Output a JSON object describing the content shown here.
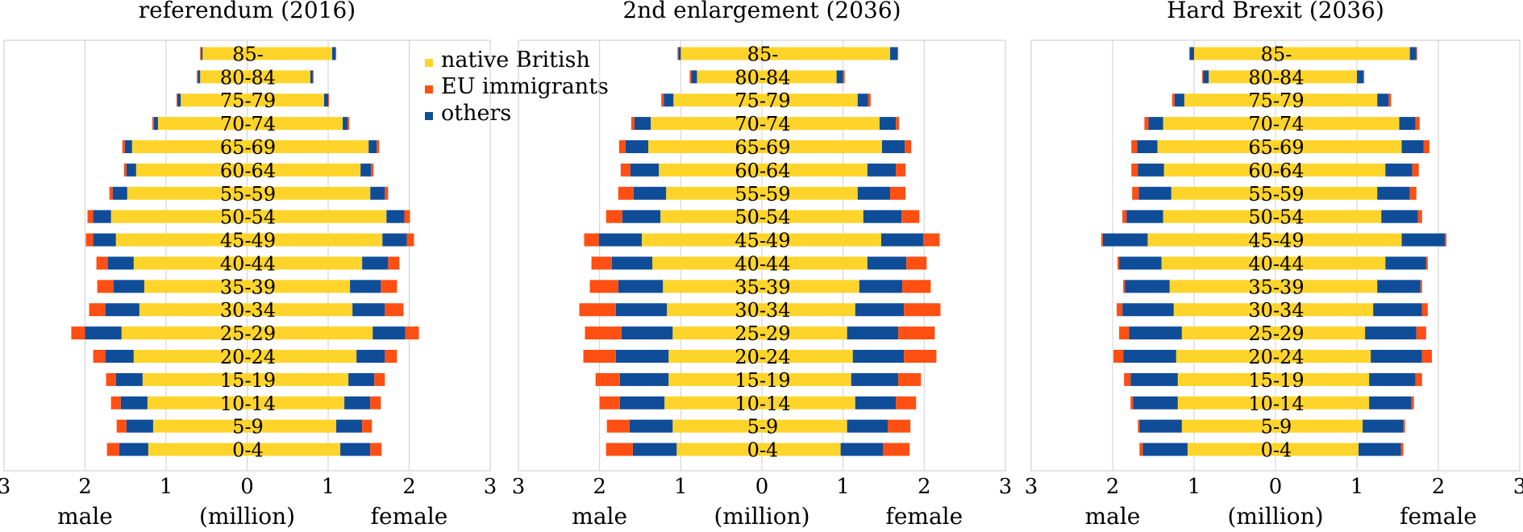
{
  "chart_data": [
    {
      "type": "bar",
      "orientation": "horizontal-population-pyramid",
      "title": "referendum (2016)",
      "xlabel": "(million)",
      "left_label": "male",
      "right_label": "female",
      "xlim": [
        -3,
        3
      ],
      "x_ticks": [
        "3",
        "2",
        "1",
        "0",
        "1",
        "2",
        "3"
      ],
      "categories": [
        "0-4",
        "5-9",
        "10-14",
        "15-19",
        "20-24",
        "25-29",
        "30-34",
        "35-39",
        "40-44",
        "45-49",
        "50-54",
        "55-59",
        "60-64",
        "65-69",
        "70-74",
        "75-79",
        "80-84",
        "85-"
      ],
      "series": [
        {
          "name": "native British",
          "color": "#FFD42A",
          "male": [
            1.22,
            1.16,
            1.23,
            1.29,
            1.4,
            1.55,
            1.33,
            1.27,
            1.4,
            1.62,
            1.68,
            1.48,
            1.37,
            1.42,
            1.1,
            0.82,
            0.58,
            0.55
          ],
          "female": [
            1.15,
            1.1,
            1.2,
            1.25,
            1.35,
            1.55,
            1.3,
            1.27,
            1.42,
            1.67,
            1.72,
            1.52,
            1.4,
            1.5,
            1.18,
            0.95,
            0.78,
            1.05
          ]
        },
        {
          "name": "EU immigrants",
          "color": "#FF4F12",
          "male": [
            0.15,
            0.12,
            0.12,
            0.12,
            0.15,
            0.17,
            0.2,
            0.2,
            0.14,
            0.09,
            0.07,
            0.04,
            0.03,
            0.03,
            0.02,
            0.01,
            0.01,
            0.01
          ],
          "female": [
            0.14,
            0.12,
            0.13,
            0.13,
            0.15,
            0.17,
            0.23,
            0.2,
            0.14,
            0.09,
            0.07,
            0.04,
            0.03,
            0.03,
            0.02,
            0.01,
            0.01,
            0.01
          ]
        },
        {
          "name": "others",
          "color": "#0F4D99",
          "male": [
            0.36,
            0.33,
            0.33,
            0.33,
            0.35,
            0.45,
            0.42,
            0.38,
            0.32,
            0.28,
            0.22,
            0.18,
            0.12,
            0.09,
            0.05,
            0.04,
            0.03,
            0.02
          ],
          "female": [
            0.37,
            0.32,
            0.32,
            0.32,
            0.35,
            0.4,
            0.4,
            0.38,
            0.32,
            0.3,
            0.22,
            0.18,
            0.13,
            0.1,
            0.06,
            0.05,
            0.03,
            0.04
          ]
        }
      ]
    },
    {
      "type": "bar",
      "orientation": "horizontal-population-pyramid",
      "title": "2nd enlargement (2036)",
      "xlabel": "(million)",
      "left_label": "male",
      "right_label": "female",
      "xlim": [
        -3,
        3
      ],
      "x_ticks": [
        "3",
        "2",
        "1",
        "0",
        "1",
        "2",
        "3"
      ],
      "categories": [
        "0-4",
        "5-9",
        "10-14",
        "15-19",
        "20-24",
        "25-29",
        "30-34",
        "35-39",
        "40-44",
        "45-49",
        "50-54",
        "55-59",
        "60-64",
        "65-69",
        "70-74",
        "75-79",
        "80-84",
        "85-"
      ],
      "series": [
        {
          "name": "native British",
          "color": "#FFD42A",
          "male": [
            1.05,
            1.1,
            1.2,
            1.15,
            1.15,
            1.1,
            1.17,
            1.22,
            1.35,
            1.48,
            1.25,
            1.18,
            1.27,
            1.4,
            1.37,
            1.09,
            0.8,
            1.0
          ],
          "female": [
            0.97,
            1.05,
            1.15,
            1.1,
            1.12,
            1.05,
            1.15,
            1.2,
            1.3,
            1.47,
            1.25,
            1.18,
            1.3,
            1.48,
            1.45,
            1.18,
            0.92,
            1.58
          ]
        },
        {
          "name": "EU immigrants",
          "color": "#FF4F12",
          "male": [
            0.33,
            0.28,
            0.25,
            0.3,
            0.4,
            0.45,
            0.45,
            0.35,
            0.25,
            0.18,
            0.2,
            0.19,
            0.12,
            0.08,
            0.04,
            0.03,
            0.02,
            0.01
          ],
          "female": [
            0.33,
            0.28,
            0.25,
            0.28,
            0.4,
            0.45,
            0.45,
            0.35,
            0.25,
            0.2,
            0.22,
            0.19,
            0.12,
            0.08,
            0.04,
            0.03,
            0.02,
            0.01
          ]
        },
        {
          "name": "others",
          "color": "#0F4D99",
          "male": [
            0.54,
            0.53,
            0.55,
            0.6,
            0.65,
            0.63,
            0.63,
            0.55,
            0.5,
            0.53,
            0.47,
            0.4,
            0.35,
            0.28,
            0.2,
            0.12,
            0.07,
            0.03
          ],
          "female": [
            0.52,
            0.5,
            0.5,
            0.58,
            0.63,
            0.63,
            0.6,
            0.53,
            0.48,
            0.52,
            0.47,
            0.4,
            0.35,
            0.28,
            0.2,
            0.13,
            0.08,
            0.09
          ]
        }
      ]
    },
    {
      "type": "bar",
      "orientation": "horizontal-population-pyramid",
      "title": "Hard Brexit (2036)",
      "xlabel": "(million)",
      "left_label": "male",
      "right_label": "female",
      "xlim": [
        -3,
        3
      ],
      "x_ticks": [
        "3",
        "2",
        "1",
        "0",
        "1",
        "2",
        "3"
      ],
      "categories": [
        "0-4",
        "5-9",
        "10-14",
        "15-19",
        "20-24",
        "25-29",
        "30-34",
        "35-39",
        "40-44",
        "45-49",
        "50-54",
        "55-59",
        "60-64",
        "65-69",
        "70-74",
        "75-79",
        "80-84",
        "85-"
      ],
      "series": [
        {
          "name": "native British",
          "color": "#FFD42A",
          "male": [
            1.08,
            1.15,
            1.2,
            1.2,
            1.22,
            1.15,
            1.25,
            1.3,
            1.4,
            1.57,
            1.38,
            1.28,
            1.37,
            1.45,
            1.38,
            1.12,
            0.82,
            1.0
          ],
          "female": [
            1.02,
            1.07,
            1.15,
            1.15,
            1.17,
            1.1,
            1.2,
            1.25,
            1.35,
            1.55,
            1.3,
            1.25,
            1.35,
            1.55,
            1.52,
            1.25,
            1.0,
            1.65
          ]
        },
        {
          "name": "EU immigrants",
          "color": "#FF4F12",
          "male": [
            0.04,
            0.02,
            0.03,
            0.08,
            0.12,
            0.12,
            0.07,
            0.02,
            0.02,
            0.02,
            0.05,
            0.08,
            0.08,
            0.07,
            0.05,
            0.03,
            0.01,
            0.01
          ],
          "female": [
            0.03,
            0.02,
            0.03,
            0.08,
            0.12,
            0.12,
            0.07,
            0.02,
            0.02,
            0.02,
            0.05,
            0.08,
            0.08,
            0.07,
            0.05,
            0.03,
            0.01,
            0.01
          ]
        },
        {
          "name": "others",
          "color": "#0F4D99",
          "male": [
            0.55,
            0.52,
            0.55,
            0.58,
            0.65,
            0.65,
            0.63,
            0.55,
            0.52,
            0.55,
            0.45,
            0.4,
            0.32,
            0.25,
            0.18,
            0.12,
            0.07,
            0.05
          ],
          "female": [
            0.52,
            0.5,
            0.52,
            0.57,
            0.63,
            0.63,
            0.6,
            0.53,
            0.5,
            0.53,
            0.45,
            0.4,
            0.33,
            0.27,
            0.2,
            0.14,
            0.08,
            0.08
          ]
        }
      ]
    }
  ]
}
